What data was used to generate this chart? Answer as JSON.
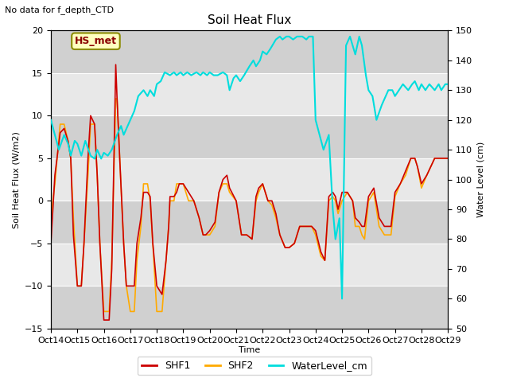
{
  "title": "Soil Heat Flux",
  "subtitle": "No data for f_depth_CTD",
  "xlabel": "Time",
  "ylabel_left": "Soil Heat Flux (W/m2)",
  "ylabel_right": "Water Level (cm)",
  "ylim_left": [
    -15,
    20
  ],
  "ylim_right": [
    50,
    150
  ],
  "annotation_box": "HS_met",
  "bg_color": "#e8e8e8",
  "fig_color": "#ffffff",
  "xtick_labels": [
    "Oct 14",
    "Oct 15",
    "Oct 16",
    "Oct 17",
    "Oct 18",
    "Oct 19",
    "Oct 20",
    "Oct 21",
    "Oct 22",
    "Oct 23",
    "Oct 24",
    "Oct 25",
    "Oct 26",
    "Oct 27",
    "Oct 28",
    "Oct 29"
  ],
  "shf1_color": "#cc0000",
  "shf2_color": "#ffaa00",
  "water_color": "#00dddd",
  "shf1_x": [
    0.0,
    0.15,
    0.35,
    0.5,
    0.65,
    0.75,
    0.85,
    1.0,
    1.15,
    1.25,
    1.4,
    1.5,
    1.65,
    1.75,
    1.85,
    2.0,
    2.2,
    2.3,
    2.45,
    2.5,
    2.6,
    2.75,
    2.85,
    3.0,
    3.15,
    3.25,
    3.4,
    3.5,
    3.65,
    3.75,
    3.85,
    4.0,
    4.2,
    4.35,
    4.45,
    4.5,
    4.65,
    4.75,
    4.85,
    5.0,
    5.2,
    5.4,
    5.6,
    5.75,
    5.85,
    6.0,
    6.2,
    6.35,
    6.5,
    6.65,
    6.75,
    7.0,
    7.2,
    7.4,
    7.6,
    7.75,
    7.85,
    8.0,
    8.2,
    8.35,
    8.5,
    8.65,
    8.85,
    9.0,
    9.2,
    9.4,
    9.6,
    9.75,
    9.85,
    10.0,
    10.2,
    10.35,
    10.5,
    10.65,
    10.75,
    10.85,
    11.0,
    11.2,
    11.4,
    11.5,
    11.65,
    11.75,
    11.85,
    12.0,
    12.2,
    12.4,
    12.6,
    12.75,
    12.85,
    13.0,
    13.2,
    13.4,
    13.6,
    13.75,
    13.85,
    14.0,
    14.2,
    14.35,
    14.5,
    14.65,
    14.75,
    14.85,
    15.0
  ],
  "shf1_y": [
    -5.0,
    3.0,
    8.0,
    8.5,
    7.0,
    5.0,
    -4.0,
    -10.0,
    -10.0,
    -5.0,
    5.0,
    10.0,
    9.0,
    3.0,
    -5.0,
    -14.0,
    -14.0,
    -8.0,
    16.0,
    12.0,
    5.0,
    -5.0,
    -10.0,
    -10.0,
    -10.0,
    -5.0,
    -2.0,
    1.0,
    1.0,
    0.5,
    -5.0,
    -10.0,
    -11.0,
    -7.0,
    -3.0,
    0.5,
    0.5,
    1.0,
    2.0,
    2.0,
    1.0,
    0.0,
    -2.0,
    -4.0,
    -4.0,
    -3.5,
    -2.5,
    1.0,
    2.5,
    3.0,
    1.5,
    0.0,
    -4.0,
    -4.0,
    -4.5,
    0.5,
    1.5,
    2.0,
    0.0,
    0.0,
    -1.5,
    -4.0,
    -5.5,
    -5.5,
    -5.0,
    -3.0,
    -3.0,
    -3.0,
    -3.0,
    -3.5,
    -6.0,
    -7.0,
    0.5,
    1.0,
    0.5,
    -1.0,
    1.0,
    1.0,
    0.0,
    -2.0,
    -2.5,
    -3.0,
    -3.0,
    0.5,
    1.5,
    -2.0,
    -3.0,
    -3.0,
    -3.0,
    1.0,
    2.0,
    3.5,
    5.0,
    5.0,
    4.0,
    2.0,
    3.0,
    4.0,
    5.0,
    5.0,
    5.0,
    5.0,
    5.0
  ],
  "shf2_x": [
    0.0,
    0.15,
    0.35,
    0.5,
    0.65,
    0.75,
    0.85,
    1.0,
    1.15,
    1.25,
    1.4,
    1.5,
    1.65,
    1.75,
    1.85,
    2.0,
    2.2,
    2.3,
    2.45,
    2.5,
    2.6,
    2.75,
    2.85,
    3.0,
    3.15,
    3.25,
    3.4,
    3.5,
    3.65,
    3.75,
    3.85,
    4.0,
    4.2,
    4.35,
    4.45,
    4.5,
    4.65,
    4.75,
    4.85,
    5.0,
    5.2,
    5.4,
    5.6,
    5.75,
    5.85,
    6.0,
    6.2,
    6.35,
    6.5,
    6.65,
    6.75,
    7.0,
    7.2,
    7.4,
    7.6,
    7.75,
    7.85,
    8.0,
    8.2,
    8.35,
    8.5,
    8.65,
    8.85,
    9.0,
    9.2,
    9.4,
    9.6,
    9.75,
    9.85,
    10.0,
    10.2,
    10.35,
    10.5,
    10.65,
    10.75,
    10.85,
    11.0,
    11.2,
    11.4,
    11.5,
    11.65,
    11.75,
    11.85,
    12.0,
    12.2,
    12.4,
    12.6,
    12.75,
    12.85,
    13.0,
    13.2,
    13.4,
    13.6,
    13.75,
    13.85,
    14.0,
    14.2,
    14.35,
    14.5,
    14.65,
    14.75,
    14.85,
    15.0
  ],
  "shf2_y": [
    -2.0,
    2.0,
    9.0,
    9.0,
    7.0,
    5.0,
    -2.0,
    -10.0,
    -10.0,
    -5.0,
    3.0,
    9.0,
    9.0,
    3.0,
    -5.0,
    -13.0,
    -13.0,
    -7.0,
    12.0,
    12.0,
    5.0,
    -5.0,
    -10.0,
    -13.0,
    -13.0,
    -7.0,
    -3.0,
    2.0,
    2.0,
    0.0,
    -5.0,
    -13.0,
    -13.0,
    -7.0,
    -3.0,
    0.0,
    0.0,
    2.0,
    2.0,
    2.0,
    0.0,
    0.0,
    -2.0,
    -4.0,
    -4.0,
    -4.0,
    -3.0,
    1.0,
    2.0,
    2.0,
    1.0,
    0.0,
    -4.0,
    -4.0,
    -4.5,
    0.0,
    1.0,
    2.0,
    0.0,
    -0.5,
    -2.0,
    -4.0,
    -5.5,
    -5.5,
    -5.0,
    -3.0,
    -3.0,
    -3.0,
    -3.0,
    -4.0,
    -6.5,
    -7.0,
    0.0,
    0.5,
    0.0,
    -1.5,
    0.0,
    1.0,
    0.0,
    -3.0,
    -3.0,
    -4.0,
    -4.5,
    0.0,
    1.0,
    -3.0,
    -4.0,
    -4.0,
    -4.0,
    0.5,
    2.0,
    3.0,
    5.0,
    5.0,
    4.0,
    1.5,
    3.0,
    4.0,
    5.0,
    5.0,
    5.0,
    5.0,
    5.0
  ],
  "water_x": [
    0.0,
    0.15,
    0.3,
    0.5,
    0.65,
    0.75,
    0.9,
    1.0,
    1.15,
    1.3,
    1.5,
    1.65,
    1.75,
    1.9,
    2.0,
    2.15,
    2.3,
    2.5,
    2.65,
    2.75,
    2.9,
    3.0,
    3.15,
    3.3,
    3.5,
    3.65,
    3.75,
    3.9,
    4.0,
    4.15,
    4.3,
    4.5,
    4.65,
    4.75,
    4.9,
    5.0,
    5.15,
    5.3,
    5.5,
    5.65,
    5.75,
    5.9,
    6.0,
    6.15,
    6.3,
    6.5,
    6.65,
    6.75,
    6.9,
    7.0,
    7.15,
    7.3,
    7.5,
    7.65,
    7.75,
    7.9,
    8.0,
    8.15,
    8.3,
    8.5,
    8.65,
    8.75,
    8.9,
    9.0,
    9.15,
    9.3,
    9.5,
    9.65,
    9.75,
    9.9,
    10.0,
    10.15,
    10.3,
    10.5,
    10.65,
    10.75,
    10.9,
    11.0,
    11.15,
    11.3,
    11.5,
    11.65,
    11.75,
    11.9,
    12.0,
    12.15,
    12.3,
    12.5,
    12.65,
    12.75,
    12.9,
    13.0,
    13.15,
    13.3,
    13.5,
    13.65,
    13.75,
    13.9,
    14.0,
    14.15,
    14.3,
    14.5,
    14.65,
    14.75,
    14.9,
    15.0
  ],
  "water_y": [
    120,
    115,
    110,
    115,
    112,
    108,
    113,
    112,
    108,
    113,
    108,
    107,
    110,
    107,
    109,
    108,
    110,
    115,
    118,
    115,
    118,
    120,
    123,
    128,
    130,
    128,
    130,
    128,
    132,
    133,
    136,
    135,
    136,
    135,
    136,
    135,
    136,
    135,
    136,
    135,
    136,
    135,
    136,
    135,
    135,
    136,
    135,
    130,
    134,
    135,
    133,
    135,
    138,
    140,
    138,
    140,
    143,
    142,
    144,
    147,
    148,
    147,
    148,
    148,
    147,
    148,
    148,
    147,
    148,
    148,
    120,
    115,
    110,
    115,
    90,
    80,
    87,
    60,
    145,
    148,
    142,
    148,
    145,
    135,
    130,
    128,
    120,
    125,
    128,
    130,
    130,
    128,
    130,
    132,
    130,
    132,
    133,
    130,
    132,
    130,
    132,
    130,
    132,
    130,
    132,
    132
  ]
}
